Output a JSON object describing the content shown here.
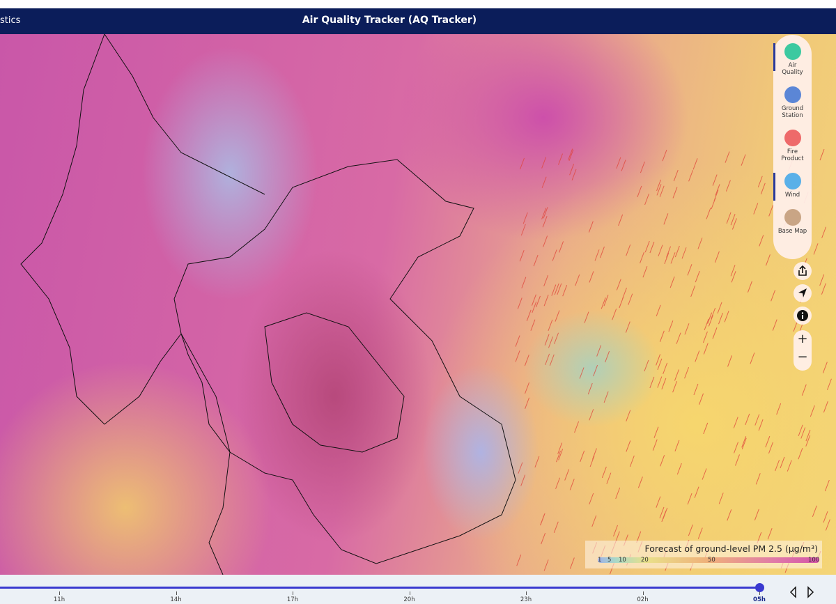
{
  "header": {
    "left_link": "stics",
    "title": "Air Quality Tracker (AQ Tracker)"
  },
  "layers": [
    {
      "label": "Air Quality"
    },
    {
      "label": "Ground Station"
    },
    {
      "label": "Fire Product"
    },
    {
      "label": "Wind"
    },
    {
      "label": "Base Map"
    }
  ],
  "legend": {
    "title": "Forecast of ground-level PM 2.5 (μg/m³)",
    "ticks": [
      1,
      5,
      10,
      20,
      50,
      100
    ]
  },
  "timeline": {
    "labels": [
      "11h",
      "14h",
      "17h",
      "20h",
      "23h",
      "02h",
      "05h"
    ]
  }
}
